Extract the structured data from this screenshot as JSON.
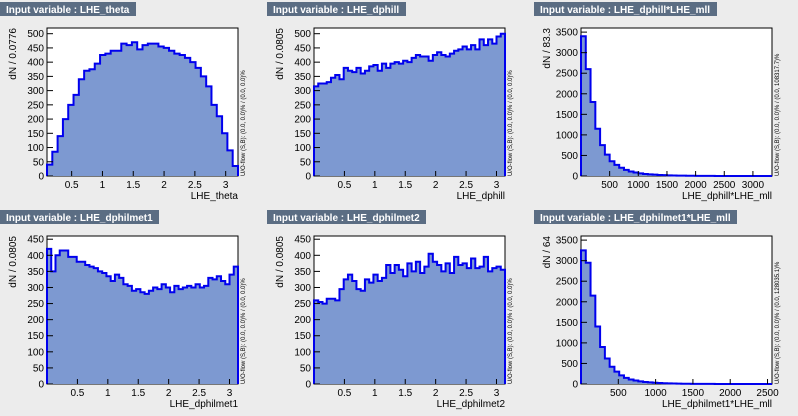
{
  "chart_data": [
    {
      "type": "bar",
      "title": "Input variable : LHE_theta",
      "xlabel": "LHE_theta",
      "ylabel": "dN / 0.0776",
      "xlim": [
        0.1,
        3.2
      ],
      "ylim": [
        0,
        520
      ],
      "xticks": [
        0.5,
        1,
        1.5,
        2,
        2.5,
        3
      ],
      "xtick_labels": [
        "0.5",
        "1",
        "1.5",
        "2",
        "2.5",
        "3"
      ],
      "yticks": [
        0,
        50,
        100,
        150,
        200,
        250,
        300,
        350,
        400,
        450,
        500
      ],
      "ytick_labels": [
        "0",
        "50",
        "100",
        "150",
        "200",
        "250",
        "300",
        "350",
        "400",
        "450",
        "500"
      ],
      "flow_text": "U/O-flow (S,B): (0.0, 0.0)% / (0.0, 0.0)%",
      "values": [
        40,
        85,
        140,
        200,
        250,
        285,
        340,
        370,
        375,
        395,
        425,
        430,
        440,
        440,
        465,
        460,
        470,
        445,
        460,
        465,
        465,
        455,
        450,
        440,
        430,
        425,
        415,
        400,
        380,
        350,
        315,
        250,
        210,
        150,
        90,
        35
      ]
    },
    {
      "type": "bar",
      "title": "Input variable : LHE_dphill",
      "xlabel": "LHE_dphill",
      "ylabel": "dN / 0.0805",
      "xlim": [
        0,
        3.14
      ],
      "ylim": [
        0,
        520
      ],
      "xticks": [
        0.5,
        1,
        1.5,
        2,
        2.5,
        3
      ],
      "xtick_labels": [
        "0.5",
        "1",
        "1.5",
        "2",
        "2.5",
        "3"
      ],
      "yticks": [
        0,
        50,
        100,
        150,
        200,
        250,
        300,
        350,
        400,
        450,
        500
      ],
      "ytick_labels": [
        "0",
        "50",
        "100",
        "150",
        "200",
        "250",
        "300",
        "350",
        "400",
        "450",
        "500"
      ],
      "flow_text": "U/O-flow (S,B): (0.0, 0.0)% / (0.0, 0.0)%",
      "values": [
        315,
        325,
        325,
        330,
        345,
        355,
        340,
        380,
        370,
        365,
        380,
        360,
        370,
        385,
        390,
        370,
        395,
        380,
        395,
        400,
        395,
        405,
        400,
        415,
        425,
        420,
        420,
        405,
        425,
        435,
        425,
        420,
        430,
        440,
        445,
        455,
        445,
        460,
        445,
        480,
        460,
        480,
        465,
        490,
        500
      ]
    },
    {
      "type": "bar",
      "title": "Input variable : LHE_dphill*LHE_mll",
      "xlabel": "LHE_dphill*LHE_mll",
      "ylabel": "dN / 83.3",
      "xlim": [
        0,
        3333
      ],
      "ylim": [
        0,
        3600
      ],
      "xticks": [
        500,
        1000,
        1500,
        2000,
        2500,
        3000
      ],
      "xtick_labels": [
        "500",
        "1000",
        "1500",
        "2000",
        "2500",
        "3000"
      ],
      "yticks": [
        0,
        500,
        1000,
        1500,
        2000,
        2500,
        3000,
        3500
      ],
      "ytick_labels": [
        "0",
        "500",
        "1000",
        "1500",
        "2000",
        "2500",
        "3000",
        "3500"
      ],
      "flow_text": "U/O-flow (S,B): (0.0, 0.0)% / (0.0, 108317.7)%",
      "values": [
        3400,
        2600,
        1800,
        1150,
        750,
        520,
        360,
        270,
        200,
        150,
        110,
        85,
        65,
        50,
        40,
        32,
        25,
        20,
        15,
        12,
        10,
        8,
        6,
        5,
        4,
        3,
        2,
        2,
        1,
        1,
        1,
        1,
        0,
        0,
        0,
        0,
        0,
        0,
        0,
        0
      ]
    },
    {
      "type": "bar",
      "title": "Input variable : LHE_dphilmet1",
      "xlabel": "LHE_dphilmet1",
      "ylabel": "dN / 0.0805",
      "xlim": [
        0,
        3.14
      ],
      "ylim": [
        0,
        460
      ],
      "xticks": [
        0.5,
        1,
        1.5,
        2,
        2.5,
        3
      ],
      "xtick_labels": [
        "0.5",
        "1",
        "1.5",
        "2",
        "2.5",
        "3"
      ],
      "yticks": [
        0,
        50,
        100,
        150,
        200,
        250,
        300,
        350,
        400,
        450
      ],
      "ytick_labels": [
        "0",
        "50",
        "100",
        "150",
        "200",
        "250",
        "300",
        "350",
        "400",
        "450"
      ],
      "flow_text": "U/O-flow (S,B): (0.0, 0.0)% / (0.0, 0.0)%",
      "values": [
        420,
        350,
        400,
        415,
        415,
        395,
        395,
        380,
        380,
        370,
        365,
        360,
        350,
        345,
        335,
        320,
        340,
        330,
        310,
        305,
        290,
        295,
        285,
        280,
        290,
        300,
        295,
        310,
        300,
        285,
        305,
        295,
        300,
        305,
        300,
        310,
        300,
        305,
        330,
        325,
        335,
        320,
        310,
        340,
        365
      ]
    },
    {
      "type": "bar",
      "title": "Input variable : LHE_dphilmet2",
      "xlabel": "LHE_dphilmet2",
      "ylabel": "dN / 0.0805",
      "xlim": [
        0,
        3.14
      ],
      "ylim": [
        0,
        460
      ],
      "xticks": [
        0.5,
        1,
        1.5,
        2,
        2.5,
        3
      ],
      "xtick_labels": [
        "0.5",
        "1",
        "1.5",
        "2",
        "2.5",
        "3"
      ],
      "yticks": [
        0,
        50,
        100,
        150,
        200,
        250,
        300,
        350,
        400,
        450
      ],
      "ytick_labels": [
        "0",
        "50",
        "100",
        "150",
        "200",
        "250",
        "300",
        "350",
        "400",
        "450"
      ],
      "flow_text": "U/O-flow (S,B): (0.0, 0.0)% / (0.0, 0.0)%",
      "values": [
        260,
        255,
        250,
        265,
        265,
        260,
        295,
        325,
        340,
        320,
        295,
        290,
        325,
        315,
        340,
        320,
        330,
        370,
        345,
        370,
        355,
        335,
        375,
        350,
        380,
        345,
        365,
        405,
        380,
        370,
        350,
        375,
        345,
        395,
        370,
        375,
        360,
        390,
        360,
        365,
        395,
        350,
        360,
        365,
        355
      ]
    },
    {
      "type": "bar",
      "title": "Input variable : LHE_dphilmet1*LHE_mll",
      "xlabel": "LHE_dphilmet1*LHE_mll",
      "ylabel": "dN / 64",
      "xlim": [
        0,
        2560
      ],
      "ylim": [
        0,
        3600
      ],
      "xticks": [
        500,
        1000,
        1500,
        2000,
        2500
      ],
      "xtick_labels": [
        "500",
        "1000",
        "1500",
        "2000",
        "2500"
      ],
      "yticks": [
        0,
        500,
        1000,
        1500,
        2000,
        2500,
        3000,
        3500
      ],
      "ytick_labels": [
        "0",
        "500",
        "1000",
        "1500",
        "2000",
        "2500",
        "3000",
        "3500"
      ],
      "flow_text": "U/O-flow (S,B): (0.0, 0.0)% / (0.0, 128035.1)%",
      "values": [
        3250,
        2950,
        2150,
        1400,
        900,
        620,
        420,
        300,
        210,
        150,
        110,
        85,
        65,
        50,
        40,
        30,
        24,
        18,
        14,
        11,
        9,
        7,
        5,
        4,
        3,
        3,
        2,
        2,
        1,
        1,
        1,
        1,
        1,
        0,
        0,
        0,
        0,
        0,
        0,
        0
      ]
    }
  ],
  "colors": {
    "background": "#ececec",
    "title_band": "#5b6d83",
    "fill": "#7d99d1",
    "line": "#0000ee"
  }
}
